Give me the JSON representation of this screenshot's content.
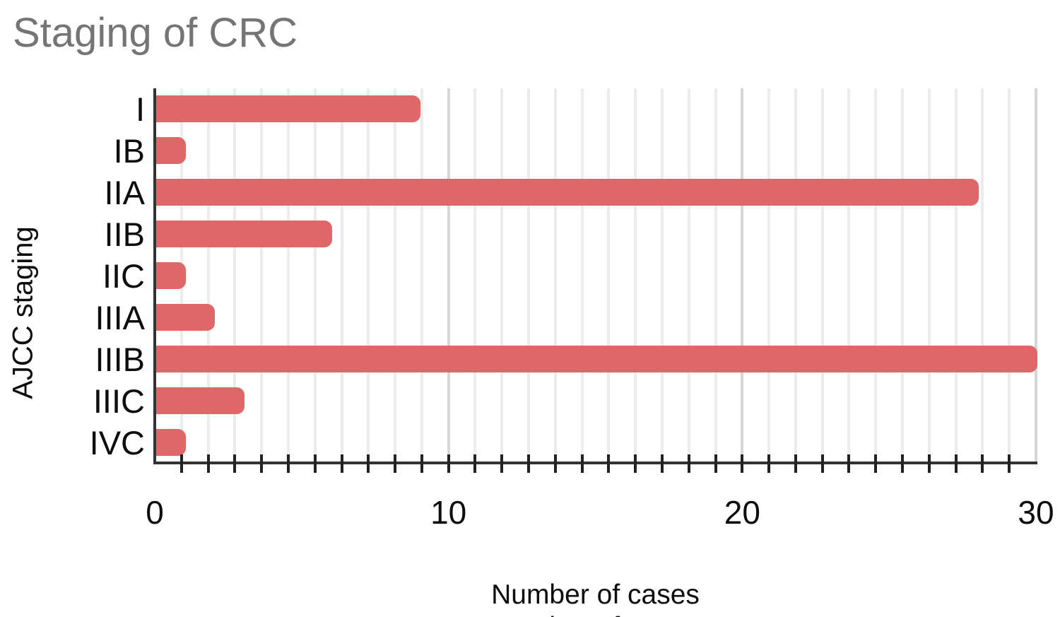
{
  "chart_data": {
    "type": "bar",
    "orientation": "horizontal",
    "title": "Staging of CRC",
    "xlabel": "Number of cases",
    "ylabel": "AJCC staging",
    "categories": [
      "I",
      "IB",
      "IIA",
      "IIB",
      "IIC",
      "IIIA",
      "IIIB",
      "IIIC",
      "IVC"
    ],
    "values": [
      9,
      1,
      28,
      6,
      1,
      2,
      30,
      3,
      1
    ],
    "xlim": [
      0,
      30
    ],
    "x_ticks": [
      0,
      10,
      20,
      30
    ],
    "minor_intervals_per_major": 11,
    "grid": "vertical",
    "legend": "none",
    "bar_color": "#e06768",
    "title_color": "#757575",
    "axis_line_color": "#333333",
    "minor_grid_color": "#ececec",
    "major_grid_color": "#d6d6d6"
  }
}
